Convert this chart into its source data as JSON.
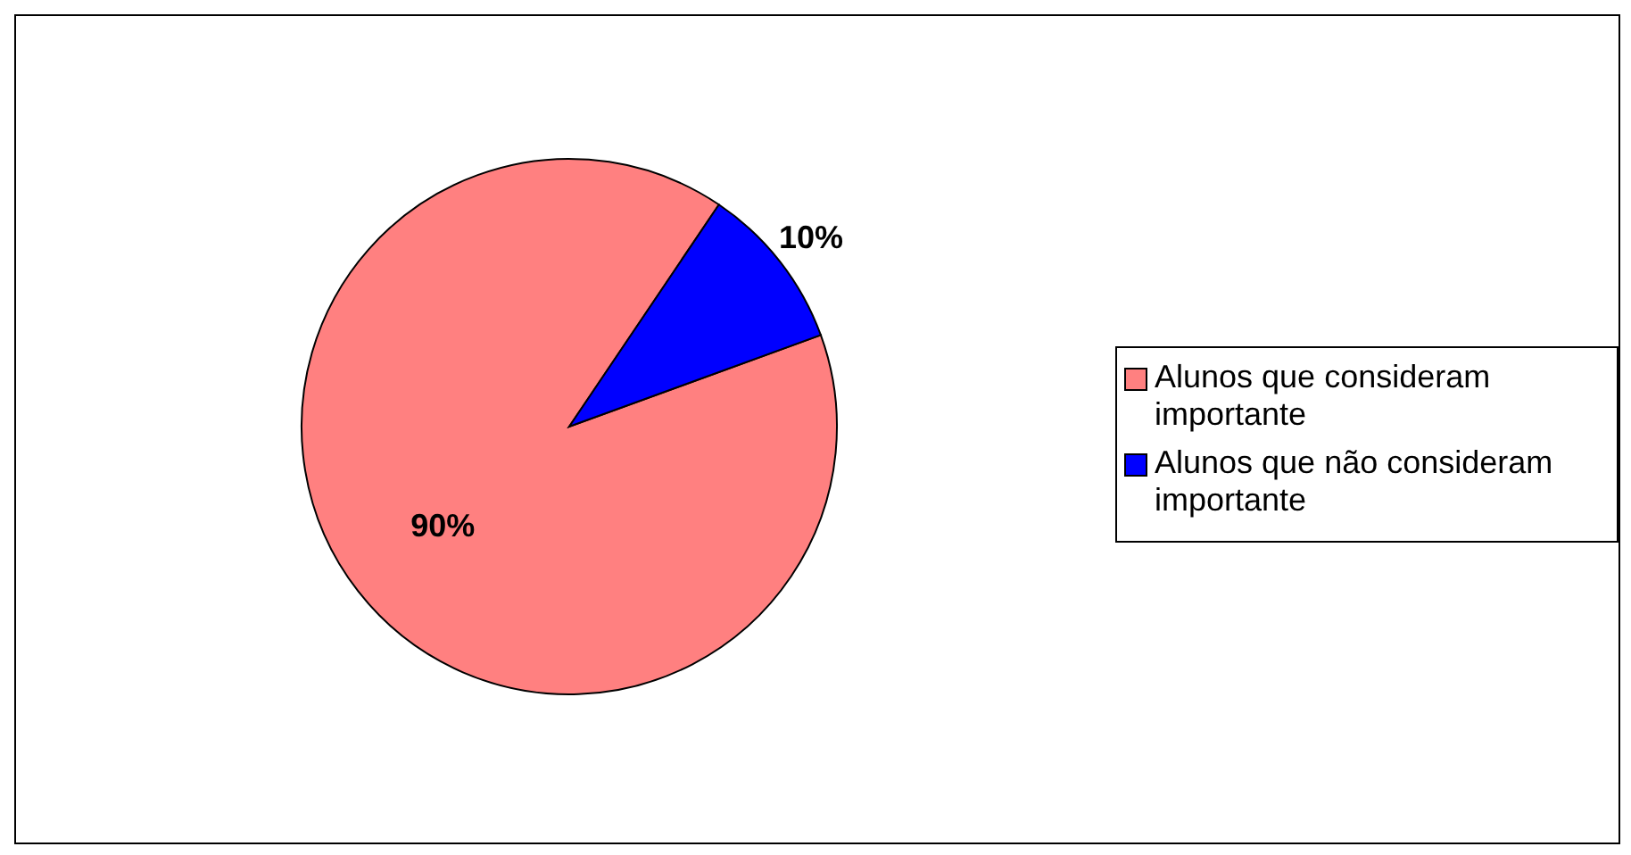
{
  "chart_data": {
    "type": "pie",
    "categories": [
      "Alunos que consideram importante",
      "Alunos que não consideram importante"
    ],
    "values": [
      90,
      10
    ],
    "colors": [
      "#ff8080",
      "#0000ff"
    ],
    "value_labels": [
      "90%",
      "10%"
    ],
    "legend": "right"
  }
}
